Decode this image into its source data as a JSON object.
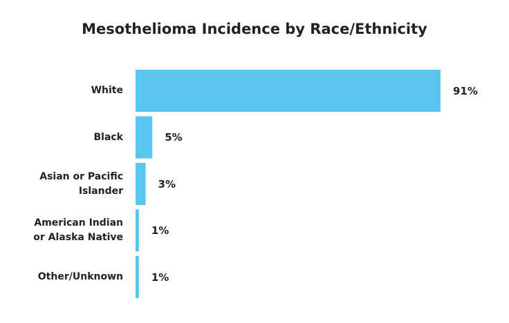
{
  "chart_data": {
    "type": "bar",
    "orientation": "horizontal",
    "title": "Mesothelioma Incidence by Race/Ethnicity",
    "categories": [
      "White",
      "Black",
      "Asian or Pacific Islander",
      "American Indian or Alaska Native",
      "Other/Unknown"
    ],
    "values": [
      91,
      5,
      3,
      1,
      1
    ],
    "value_labels": [
      "91%",
      "5%",
      "3%",
      "1%",
      "1%"
    ],
    "color": "#5bc4f1"
  }
}
